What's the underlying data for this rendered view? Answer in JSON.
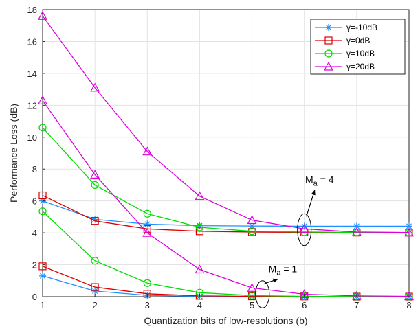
{
  "chart_data": {
    "type": "line",
    "xlabel": "Quantization bits of low-resolutions (b)",
    "ylabel": "Performance Loss (dB)",
    "xlim": [
      1,
      8
    ],
    "ylim": [
      0,
      18
    ],
    "xticks": [
      1,
      2,
      3,
      4,
      5,
      6,
      7,
      8
    ],
    "yticks": [
      0,
      2,
      4,
      6,
      8,
      10,
      12,
      14,
      16,
      18
    ],
    "grid": true,
    "legend_position": "top-right",
    "x": [
      1,
      2,
      3,
      4,
      5,
      6,
      7,
      8
    ],
    "series": [
      {
        "name": "γ=-10dB",
        "color": "#1e90ff",
        "marker": "asterisk",
        "group": "Ma = 4",
        "values": [
          6.0,
          4.85,
          4.55,
          4.45,
          4.43,
          4.42,
          4.42,
          4.42
        ]
      },
      {
        "name": "γ=0dB",
        "color": "#dd0000",
        "marker": "square",
        "group": "Ma = 4",
        "values": [
          6.35,
          4.75,
          4.25,
          4.1,
          4.05,
          4.03,
          4.02,
          4.02
        ]
      },
      {
        "name": "γ=10dB",
        "color": "#00dd00",
        "marker": "circle",
        "group": "Ma = 4",
        "values": [
          10.6,
          7.0,
          5.2,
          4.35,
          4.1,
          4.05,
          4.03,
          4.02
        ]
      },
      {
        "name": "γ=20dB",
        "color": "#dd00dd",
        "marker": "triangle",
        "group": "Ma = 4",
        "values": [
          17.6,
          13.1,
          9.1,
          6.3,
          4.8,
          4.25,
          4.05,
          4.02
        ]
      },
      {
        "name": "γ=-10dB",
        "color": "#1e90ff",
        "marker": "asterisk",
        "group": "Ma = 1",
        "values": [
          1.3,
          0.35,
          0.08,
          0.02,
          0.01,
          0.0,
          0.0,
          0.0
        ]
      },
      {
        "name": "γ=0dB",
        "color": "#dd0000",
        "marker": "square",
        "group": "Ma = 1",
        "values": [
          1.9,
          0.6,
          0.18,
          0.05,
          0.02,
          0.01,
          0.0,
          0.0
        ]
      },
      {
        "name": "γ=10dB",
        "color": "#00dd00",
        "marker": "circle",
        "group": "Ma = 1",
        "values": [
          5.35,
          2.25,
          0.85,
          0.25,
          0.07,
          0.02,
          0.01,
          0.0
        ]
      },
      {
        "name": "γ=20dB",
        "color": "#dd00dd",
        "marker": "triangle",
        "group": "Ma = 1",
        "values": [
          12.3,
          7.65,
          4.0,
          1.7,
          0.55,
          0.15,
          0.05,
          0.02
        ]
      }
    ],
    "legend": [
      {
        "label": "γ=-10dB",
        "color": "#1e90ff",
        "marker": "asterisk"
      },
      {
        "label": "γ=0dB",
        "color": "#dd0000",
        "marker": "square"
      },
      {
        "label": "γ=10dB",
        "color": "#00dd00",
        "marker": "circle"
      },
      {
        "label": "γ=20dB",
        "color": "#dd00dd",
        "marker": "triangle"
      }
    ],
    "annotations": [
      {
        "id": "ma4",
        "label_main": "M",
        "label_sub": "a",
        "label_rest": " = 4",
        "ellipse_center": [
          6.0,
          4.2
        ],
        "ellipse_span": [
          0.12,
          1.0
        ],
        "arrow_to": [
          6.2,
          6.7
        ]
      },
      {
        "id": "ma1",
        "label_main": "M",
        "label_sub": "a",
        "label_rest": " = 1",
        "ellipse_center": [
          5.2,
          0.15
        ],
        "ellipse_span": [
          0.12,
          0.85
        ],
        "arrow_to": [
          5.5,
          1.1
        ]
      }
    ]
  }
}
